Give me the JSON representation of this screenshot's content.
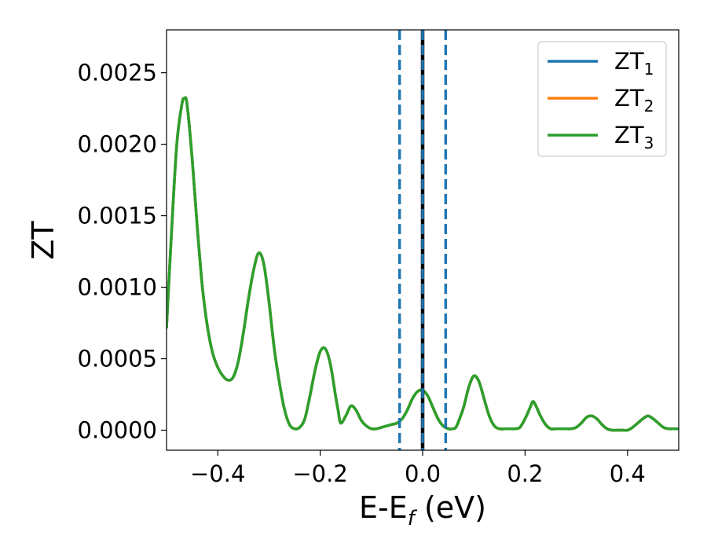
{
  "chart_data": {
    "type": "line",
    "xlabel": {
      "main": "E-E",
      "sub": "f",
      "suffix": " (eV)"
    },
    "ylabel": "ZT",
    "xlim": [
      -0.5,
      0.5
    ],
    "ylim": [
      -0.00014,
      0.0028
    ],
    "xticks": [
      -0.4,
      -0.2,
      0.0,
      0.2,
      0.4
    ],
    "xtick_labels": [
      "−0.4",
      "−0.2",
      "0.0",
      "0.2",
      "0.4"
    ],
    "yticks": [
      0.0,
      0.0005,
      0.001,
      0.0015,
      0.002,
      0.0025
    ],
    "ytick_labels": [
      "0.0000",
      "0.0005",
      "0.0010",
      "0.0015",
      "0.0020",
      "0.0025"
    ],
    "legend_position": "top-right",
    "vertical_lines": [
      {
        "x": -0.045,
        "style": "dashed",
        "color": "#1f77b4"
      },
      {
        "x": 0.045,
        "style": "dashed",
        "color": "#1f77b4"
      },
      {
        "x": 0.0,
        "style": "solid",
        "color": "#000000"
      },
      {
        "x": 0.0,
        "style": "dashed",
        "color": "#1f77b4"
      }
    ],
    "series": [
      {
        "name_main": "ZT",
        "name_sub": "1",
        "color": "#1f77b4"
      },
      {
        "name_main": "ZT",
        "name_sub": "2",
        "color": "#ff7f0e"
      },
      {
        "name_main": "ZT",
        "name_sub": "3",
        "color": "#2ca02c"
      }
    ],
    "curve": {
      "x": [
        -0.5,
        -0.49,
        -0.48,
        -0.47,
        -0.465,
        -0.46,
        -0.45,
        -0.44,
        -0.43,
        -0.42,
        -0.41,
        -0.4,
        -0.39,
        -0.38,
        -0.37,
        -0.36,
        -0.35,
        -0.34,
        -0.33,
        -0.32,
        -0.31,
        -0.3,
        -0.29,
        -0.28,
        -0.27,
        -0.26,
        -0.25,
        -0.24,
        -0.23,
        -0.22,
        -0.21,
        -0.2,
        -0.19,
        -0.18,
        -0.17,
        -0.165,
        -0.16,
        -0.15,
        -0.14,
        -0.13,
        -0.12,
        -0.11,
        -0.1,
        -0.09,
        -0.08,
        -0.07,
        -0.06,
        -0.05,
        -0.04,
        -0.03,
        -0.02,
        -0.01,
        0.0,
        0.01,
        0.02,
        0.03,
        0.04,
        0.05,
        0.06,
        0.065,
        0.07,
        0.08,
        0.09,
        0.1,
        0.11,
        0.12,
        0.13,
        0.14,
        0.15,
        0.16,
        0.17,
        0.18,
        0.19,
        0.2,
        0.21,
        0.215,
        0.22,
        0.23,
        0.24,
        0.25,
        0.26,
        0.27,
        0.28,
        0.29,
        0.3,
        0.31,
        0.32,
        0.33,
        0.34,
        0.35,
        0.36,
        0.37,
        0.38,
        0.39,
        0.4,
        0.41,
        0.42,
        0.43,
        0.44,
        0.45,
        0.46,
        0.47,
        0.48,
        0.49,
        0.5
      ],
      "y": [
        0.00072,
        0.0014,
        0.002,
        0.00228,
        0.00232,
        0.00228,
        0.0019,
        0.00142,
        0.001,
        0.00072,
        0.00054,
        0.00044,
        0.00038,
        0.00035,
        0.00037,
        0.00048,
        0.00068,
        0.00092,
        0.00112,
        0.00124,
        0.00116,
        0.0009,
        0.00058,
        0.00034,
        0.00015,
        4e-05,
        1e-05,
        2e-05,
        8e-05,
        0.00024,
        0.00042,
        0.00055,
        0.00057,
        0.00046,
        0.00024,
        0.00014,
        5e-05,
        0.0001,
        0.00017,
        0.00014,
        7e-05,
        3e-05,
        1e-05,
        1e-05,
        2e-05,
        3e-05,
        4e-05,
        5e-05,
        8e-05,
        0.00014,
        0.00022,
        0.00027,
        0.00028,
        0.00024,
        0.00016,
        8e-05,
        3e-05,
        1e-05,
        1e-05,
        2e-05,
        6e-05,
        0.00016,
        0.0003,
        0.00038,
        0.00034,
        0.00022,
        0.0001,
        3e-05,
        1e-05,
        1e-05,
        1e-05,
        1e-05,
        2e-05,
        8e-05,
        0.00016,
        0.0002,
        0.00018,
        0.0001,
        4e-05,
        1e-05,
        1e-05,
        1e-05,
        1e-05,
        1e-05,
        2e-05,
        5e-05,
        9e-05,
        0.0001,
        8e-05,
        4e-05,
        1e-05,
        0.0,
        0.0,
        0.0,
        0.0,
        2e-05,
        5e-05,
        8e-05,
        0.0001,
        8e-05,
        5e-05,
        2e-05,
        1e-05,
        1e-05,
        1e-05
      ]
    }
  }
}
